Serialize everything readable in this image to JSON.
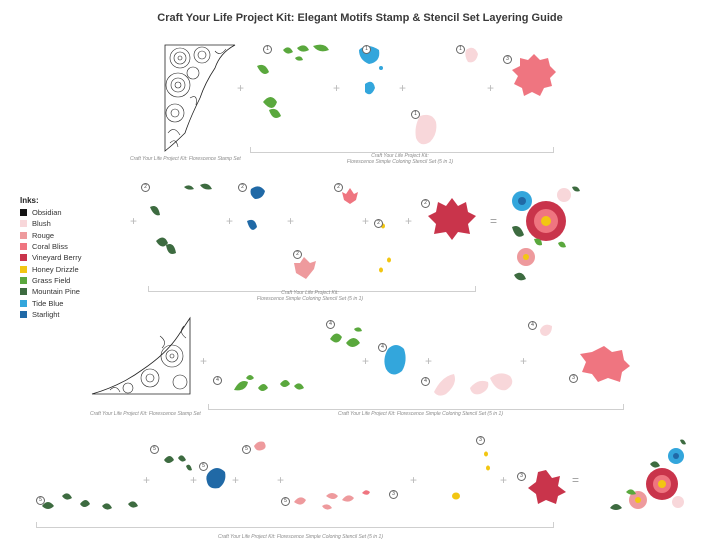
{
  "title": "Craft Your Life Project Kit: Elegant Motifs Stamp & Stencil Set Layering Guide",
  "legend": {
    "title": "Inks:",
    "items": [
      {
        "name": "Obsidian",
        "color": "#141414"
      },
      {
        "name": "Blush",
        "color": "#f8d7da"
      },
      {
        "name": "Rouge",
        "color": "#ee9a9d"
      },
      {
        "name": "Coral Bliss",
        "color": "#ef7580"
      },
      {
        "name": "Vineyard Berry",
        "color": "#c9344b"
      },
      {
        "name": "Honey Drizzle",
        "color": "#f2c612"
      },
      {
        "name": "Grass Field",
        "color": "#5aa83d"
      },
      {
        "name": "Mountain Pine",
        "color": "#3d6b40"
      },
      {
        "name": "Tide Blue",
        "color": "#33a6dc"
      },
      {
        "name": "Starlight",
        "color": "#2069a6"
      }
    ]
  },
  "captions": {
    "stamp_set_1": "Craft Your Life Project Kit: Florescence Stamp Set",
    "stencil_set_1_line1": "Craft Your Life Project Kit:",
    "stencil_set_1_line2": "Florescence Simple Coloring Stencil Set (5 in 1)",
    "stencil_set_2_line1": "Craft Your Life Project Kit:",
    "stencil_set_2_line2": "Florescence Simple Coloring Stencil Set (5 in 1)",
    "stamp_set_3": "Craft Your Life Project Kit: Florescence Stamp Set",
    "stencil_set_3": "Craft Your Life Project Kit: Florescence Simple Coloring Stencil Set (5 in 1)",
    "stencil_set_4": "Craft Your Life Project Kit: Florescence Simple Coloring Stencil Set (5 in 1)"
  },
  "symbols": {
    "plus": "+",
    "equals": "="
  },
  "step_numbers": {
    "row1": [
      "1",
      "1",
      "1",
      "1",
      "3"
    ],
    "row2": [
      "2",
      "2",
      "2",
      "2",
      "2",
      "2"
    ],
    "row3": [
      "4",
      "4",
      "4",
      "4",
      "3"
    ],
    "row4": [
      "5",
      "5",
      "5",
      "5",
      "5",
      "3",
      "3",
      "3"
    ]
  }
}
